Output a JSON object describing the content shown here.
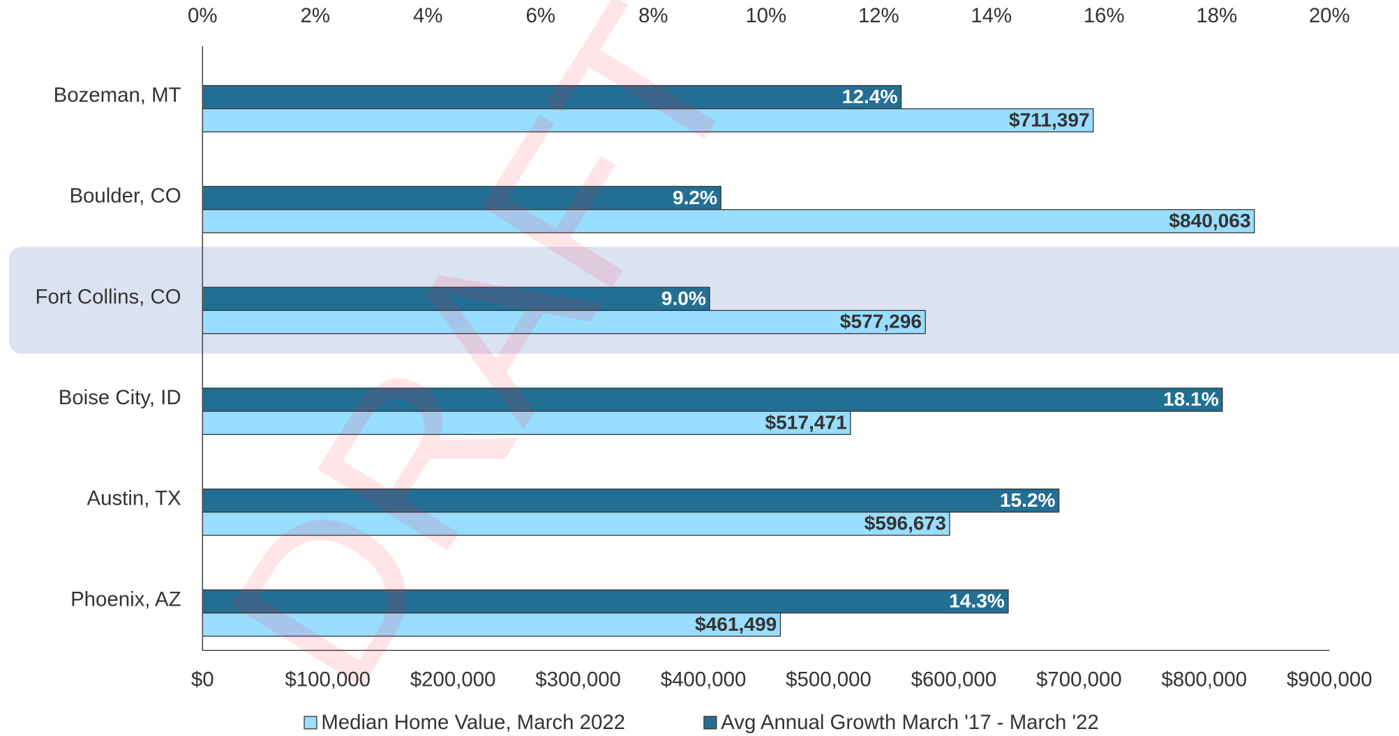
{
  "chart_data": {
    "type": "bar",
    "orientation": "horizontal",
    "watermark": "DRAFT",
    "categories": [
      "Bozeman, MT",
      "Boulder, CO",
      "Fort Collins, CO",
      "Boise City, ID",
      "Austin, TX",
      "Phoenix, AZ"
    ],
    "series": [
      {
        "name": "Avg Annual Growth March '17 - March '22",
        "color": "#236f94",
        "axis": "x2",
        "values": [
          12.4,
          9.2,
          9.0,
          18.1,
          15.2,
          14.3
        ],
        "value_labels": [
          "12.4%",
          "9.2%",
          "9.0%",
          "18.1%",
          "15.2%",
          "14.3%"
        ]
      },
      {
        "name": "Median Home Value, March 2022",
        "color": "#99ddff",
        "axis": "x",
        "values": [
          711397,
          840063,
          577296,
          517471,
          596673,
          461499
        ],
        "value_labels": [
          "$711,397",
          "$840,063",
          "$577,296",
          "$517,471",
          "$596,673",
          "$461,499"
        ]
      }
    ],
    "legend_order": [
      1,
      0
    ],
    "xlim": [
      0,
      900000
    ],
    "xticks": [
      {
        "value": 0,
        "label": "$0"
      },
      {
        "value": 100000,
        "label": "$100,000"
      },
      {
        "value": 200000,
        "label": "$200,000"
      },
      {
        "value": 300000,
        "label": "$300,000"
      },
      {
        "value": 400000,
        "label": "$400,000"
      },
      {
        "value": 500000,
        "label": "$500,000"
      },
      {
        "value": 600000,
        "label": "$600,000"
      },
      {
        "value": 700000,
        "label": "$700,000"
      },
      {
        "value": 800000,
        "label": "$800,000"
      },
      {
        "value": 900000,
        "label": "$900,000"
      }
    ],
    "x2lim": [
      0,
      20
    ],
    "x2ticks": [
      {
        "value": 0,
        "label": "0%"
      },
      {
        "value": 2,
        "label": "2%"
      },
      {
        "value": 4,
        "label": "4%"
      },
      {
        "value": 6,
        "label": "6%"
      },
      {
        "value": 8,
        "label": "8%"
      },
      {
        "value": 10,
        "label": "10%"
      },
      {
        "value": 12,
        "label": "12%"
      },
      {
        "value": 14,
        "label": "14%"
      },
      {
        "value": 16,
        "label": "16%"
      },
      {
        "value": 18,
        "label": "18%"
      },
      {
        "value": 20,
        "label": "20%"
      }
    ],
    "grid": false
  }
}
